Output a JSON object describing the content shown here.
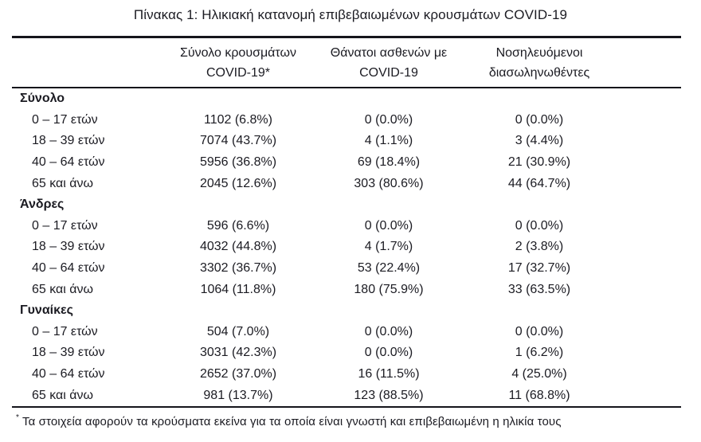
{
  "title": "Πίνακας 1: Ηλικιακή κατανομή επιβεβαιωμένων κρουσμάτων COVID-19",
  "table": {
    "columns": [
      {
        "line1": "Σύνολο κρουσμάτων",
        "line2": "COVID-19*"
      },
      {
        "line1": "Θάνατοι ασθενών με",
        "line2": "COVID-19"
      },
      {
        "line1": "Νοσηλευόμενοι",
        "line2": "διασωληνωθέντες"
      }
    ],
    "sections": [
      {
        "label": "Σύνολο",
        "rows": [
          {
            "label": "0 – 17 ετών",
            "cases": "1102 (6.8%)",
            "deaths": "0 (0.0%)",
            "intubated": "0 (0.0%)"
          },
          {
            "label": "18 – 39 ετών",
            "cases": "7074 (43.7%)",
            "deaths": "4 (1.1%)",
            "intubated": "3 (4.4%)"
          },
          {
            "label": "40 – 64 ετών",
            "cases": "5956 (36.8%)",
            "deaths": "69 (18.4%)",
            "intubated": "21 (30.9%)"
          },
          {
            "label": "65 και άνω",
            "cases": "2045 (12.6%)",
            "deaths": "303 (80.6%)",
            "intubated": "44 (64.7%)"
          }
        ]
      },
      {
        "label": "Άνδρες",
        "rows": [
          {
            "label": "0 – 17 ετών",
            "cases": "596 (6.6%)",
            "deaths": "0 (0.0%)",
            "intubated": "0 (0.0%)"
          },
          {
            "label": "18 – 39 ετών",
            "cases": "4032 (44.8%)",
            "deaths": "4 (1.7%)",
            "intubated": "2 (3.8%)"
          },
          {
            "label": "40 – 64 ετών",
            "cases": "3302 (36.7%)",
            "deaths": "53 (22.4%)",
            "intubated": "17 (32.7%)"
          },
          {
            "label": "65 και άνω",
            "cases": "1064 (11.8%)",
            "deaths": "180 (75.9%)",
            "intubated": "33 (63.5%)"
          }
        ]
      },
      {
        "label": "Γυναίκες",
        "rows": [
          {
            "label": "0 – 17 ετών",
            "cases": "504 (7.0%)",
            "deaths": "0 (0.0%)",
            "intubated": "0 (0.0%)"
          },
          {
            "label": "18 – 39 ετών",
            "cases": "3031 (42.3%)",
            "deaths": "0 (0.0%)",
            "intubated": "1 (6.2%)"
          },
          {
            "label": "40 – 64 ετών",
            "cases": "2652 (37.0%)",
            "deaths": "16 (11.5%)",
            "intubated": "4 (25.0%)"
          },
          {
            "label": "65 και άνω",
            "cases": "981 (13.7%)",
            "deaths": "123 (88.5%)",
            "intubated": "11 (68.8%)"
          }
        ]
      }
    ]
  },
  "footnote": {
    "marker": "*",
    "text": "Τα στοιχεία αφορούν τα κρούσματα εκείνα για τα οποία είναι γνωστή και επιβεβαιωμένη η ηλικία τους"
  },
  "colors": {
    "text": "#1b1b22",
    "rule": "#15151b",
    "background": "#ffffff"
  }
}
